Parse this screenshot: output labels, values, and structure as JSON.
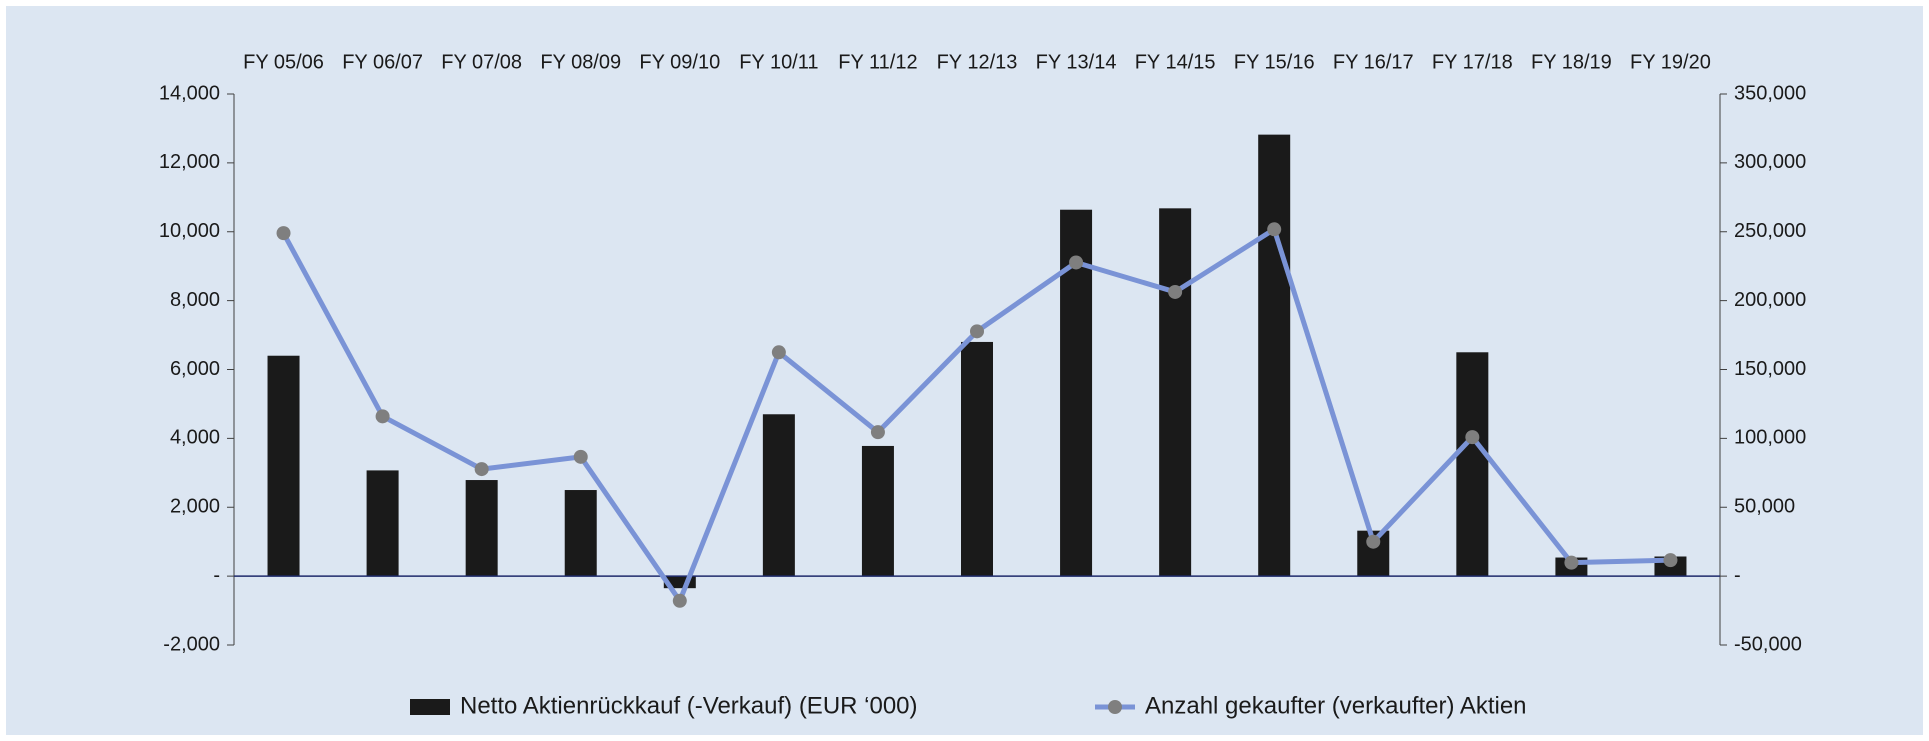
{
  "chart_data": {
    "type": "bar-line",
    "categories": [
      "FY 05/06",
      "FY 06/07",
      "FY 07/08",
      "FY 08/09",
      "FY 09/10",
      "FY 10/11",
      "FY 11/12",
      "FY 12/13",
      "FY 13/14",
      "FY 14/15",
      "FY 15/16",
      "FY 16/17",
      "FY 17/18",
      "FY 18/19",
      "FY 19/20"
    ],
    "series": [
      {
        "name": "Netto Aktienrückkauf (-Verkauf) (EUR ‘000)",
        "color": "#1a1a1a",
        "type": "bar",
        "axis": "y",
        "values": [
          6400,
          3070,
          2790,
          2500,
          -350,
          4700,
          3780,
          6800,
          10640,
          10680,
          12820,
          1320,
          6500,
          540,
          570
        ]
      },
      {
        "name": "Anzahl gekaufter (verkaufter) Aktien",
        "color": "#7a93d6",
        "marker_color": "#7f7f7f",
        "type": "line",
        "axis": "y2",
        "values": [
          249000,
          116000,
          77700,
          86600,
          -17900,
          162500,
          104500,
          177700,
          227700,
          206300,
          251800,
          25000,
          100900,
          9800,
          11600
        ]
      }
    ],
    "ylim": [
      -2000,
      14000
    ],
    "yticks": [
      {
        "value": -2000,
        "label": "-2,000"
      },
      {
        "value": 0,
        "label": "-"
      },
      {
        "value": 2000,
        "label": "2,000"
      },
      {
        "value": 4000,
        "label": "4,000"
      },
      {
        "value": 6000,
        "label": "6,000"
      },
      {
        "value": 8000,
        "label": "8,000"
      },
      {
        "value": 10000,
        "label": "10,000"
      },
      {
        "value": 12000,
        "label": "12,000"
      },
      {
        "value": 14000,
        "label": "14,000"
      }
    ],
    "y2lim": [
      -50000,
      350000
    ],
    "y2ticks": [
      {
        "value": -50000,
        "label": "-50,000"
      },
      {
        "value": 0,
        "label": "-"
      },
      {
        "value": 50000,
        "label": "50,000"
      },
      {
        "value": 100000,
        "label": "100,000"
      },
      {
        "value": 150000,
        "label": "150,000"
      },
      {
        "value": 200000,
        "label": "200,000"
      },
      {
        "value": 250000,
        "label": "250,000"
      },
      {
        "value": 300000,
        "label": "300,000"
      },
      {
        "value": 350000,
        "label": "350,000"
      }
    ],
    "grid": false,
    "legend": "bottom"
  }
}
